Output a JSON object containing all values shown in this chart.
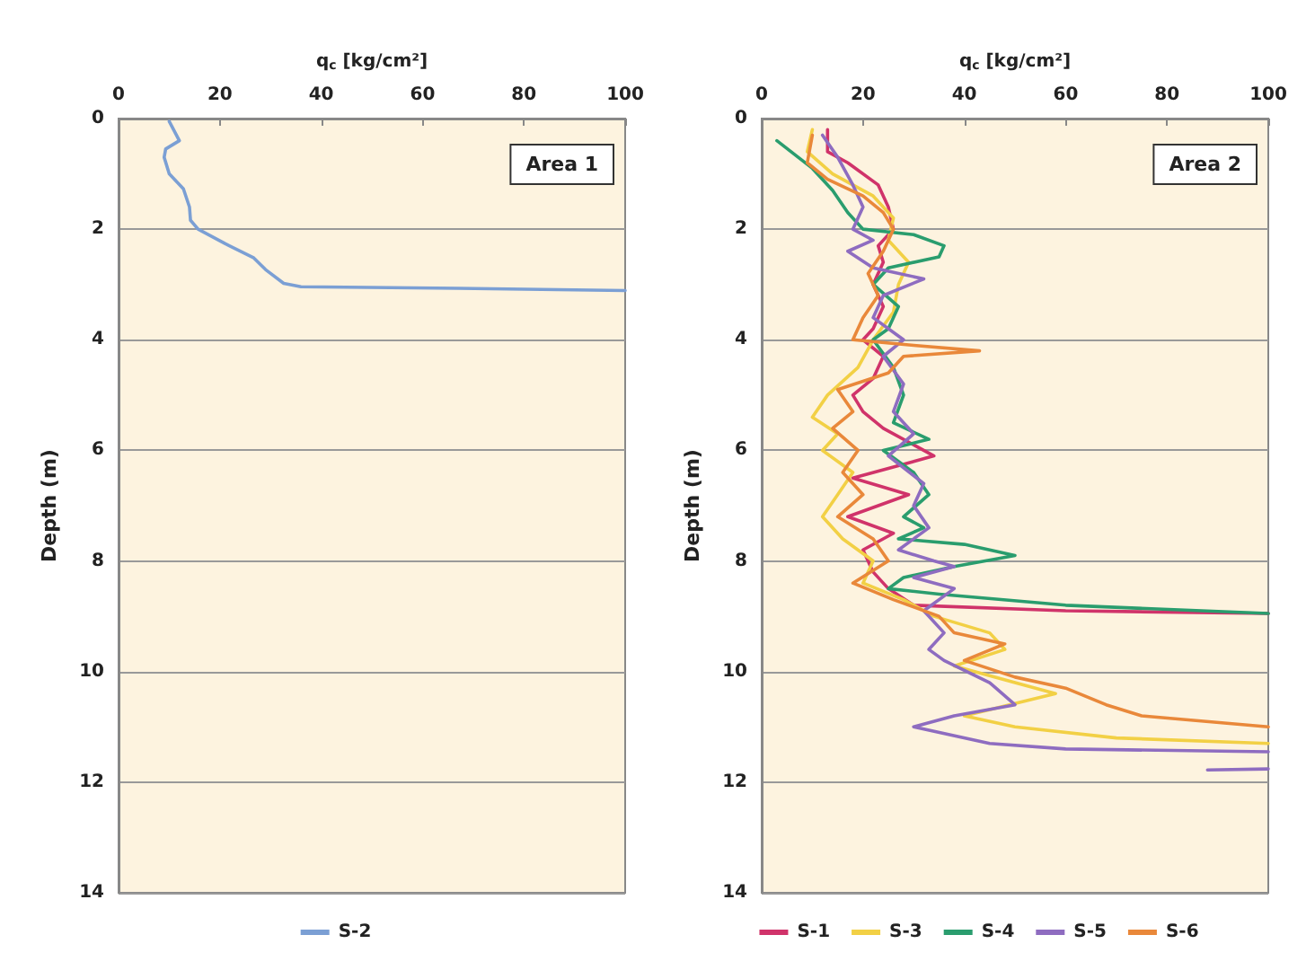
{
  "chart_data": [
    {
      "type": "line",
      "xlabel": "q$_{c}$ [kg/cm²]",
      "ylabel": "Depth (m)",
      "xlim": [
        0,
        100
      ],
      "xticks": [
        0,
        20,
        40,
        60,
        80,
        100
      ],
      "ylim": [
        14,
        0
      ],
      "yticks": [
        0,
        2,
        4,
        6,
        8,
        10,
        12,
        14
      ],
      "grid": "y",
      "legend": "bottom",
      "annotations": [
        "Area 1"
      ],
      "series": [
        {
          "name": "S-2",
          "color": "#7b9fd4",
          "x": [
            10,
            12,
            9.3,
            9,
            10,
            12.8,
            14,
            14.2,
            15.7,
            21,
            26.7,
            29,
            32.6,
            36,
            67,
            100
          ],
          "values": [
            0.05,
            0.4,
            0.55,
            0.7,
            1.0,
            1.27,
            1.6,
            1.84,
            2.0,
            2.26,
            2.52,
            2.73,
            2.98,
            3.04,
            3.07,
            3.11
          ]
        }
      ]
    },
    {
      "type": "line",
      "xlabel": "q$_{c}$ [kg/cm²]",
      "ylabel": "Depth (m)",
      "xlim": [
        0,
        100
      ],
      "xticks": [
        0,
        20,
        40,
        60,
        80,
        100
      ],
      "ylim": [
        14,
        0
      ],
      "yticks": [
        0,
        2,
        4,
        6,
        8,
        10,
        12,
        14
      ],
      "grid": "y",
      "legend": "bottom",
      "annotations": [
        "Area 2"
      ],
      "series": [
        {
          "name": "S-1",
          "color": "#d0336a",
          "x": [
            13,
            13,
            17,
            23,
            25,
            26,
            23,
            24,
            22,
            24,
            22,
            20,
            24,
            22,
            18,
            20,
            24,
            34,
            18,
            29,
            17,
            26,
            20,
            22,
            25,
            30,
            60,
            100
          ],
          "values": [
            0.2,
            0.6,
            0.8,
            1.2,
            1.6,
            2.0,
            2.3,
            2.6,
            3.0,
            3.4,
            3.8,
            4.0,
            4.3,
            4.7,
            5.0,
            5.3,
            5.6,
            6.1,
            6.5,
            6.8,
            7.2,
            7.5,
            7.8,
            8.2,
            8.5,
            8.8,
            8.9,
            8.95
          ]
        },
        {
          "name": "S-3",
          "color": "#f2d045",
          "x": [
            10,
            9,
            14,
            22,
            26,
            25,
            29,
            27,
            26,
            22,
            19,
            13,
            10,
            15,
            12,
            18,
            15,
            12,
            16,
            22,
            20,
            28,
            34,
            45,
            48,
            38,
            50,
            58,
            40,
            50,
            70,
            100
          ],
          "values": [
            0.2,
            0.6,
            1.0,
            1.4,
            1.8,
            2.2,
            2.6,
            3.0,
            3.5,
            4.0,
            4.5,
            5.0,
            5.4,
            5.7,
            6.0,
            6.4,
            6.8,
            7.2,
            7.6,
            8.0,
            8.4,
            8.7,
            9.0,
            9.3,
            9.6,
            9.9,
            10.2,
            10.4,
            10.8,
            11.0,
            11.2,
            11.3
          ]
        },
        {
          "name": "S-4",
          "color": "#2a9d6e",
          "x": [
            3,
            10,
            14,
            17,
            20,
            30,
            36,
            35,
            25,
            22,
            27,
            25,
            22,
            26,
            28,
            26,
            33,
            24,
            30,
            33,
            28,
            32,
            27,
            40,
            50,
            38,
            28,
            25,
            35,
            60,
            100
          ],
          "values": [
            0.4,
            0.9,
            1.3,
            1.7,
            2.0,
            2.1,
            2.3,
            2.5,
            2.7,
            3.0,
            3.4,
            3.8,
            4.0,
            4.5,
            5.0,
            5.5,
            5.8,
            6.0,
            6.4,
            6.8,
            7.2,
            7.4,
            7.6,
            7.7,
            7.9,
            8.1,
            8.3,
            8.5,
            8.6,
            8.8,
            8.95
          ]
        },
        {
          "name": "S-5",
          "color": "#8e6cc0",
          "x": [
            12,
            15,
            18,
            20,
            18,
            22,
            17,
            22,
            32,
            24,
            22,
            28,
            24,
            28,
            26,
            30,
            25,
            32,
            30,
            33,
            27,
            34,
            38,
            30,
            38,
            32,
            36,
            33,
            36,
            45,
            50,
            38,
            30,
            45,
            60,
            100,
            null,
            88,
            100
          ],
          "values": [
            0.3,
            0.7,
            1.2,
            1.6,
            2.0,
            2.2,
            2.4,
            2.7,
            2.9,
            3.2,
            3.6,
            4.0,
            4.3,
            4.8,
            5.3,
            5.7,
            6.1,
            6.6,
            7.0,
            7.4,
            7.8,
            8.0,
            8.1,
            8.3,
            8.5,
            8.9,
            9.3,
            9.6,
            9.8,
            10.2,
            10.6,
            10.8,
            11.0,
            11.3,
            11.4,
            11.45,
            null,
            11.78,
            11.76
          ]
        },
        {
          "name": "S-6",
          "color": "#e9883a",
          "x": [
            10,
            9,
            13,
            20,
            24,
            26,
            24,
            21,
            23,
            20,
            18,
            30,
            43,
            28,
            25,
            15,
            18,
            14,
            19,
            16,
            20,
            15,
            22,
            25,
            18,
            26,
            35,
            38,
            48,
            40,
            50,
            60,
            68,
            75,
            100
          ],
          "values": [
            0.3,
            0.8,
            1.1,
            1.4,
            1.7,
            2.0,
            2.4,
            2.8,
            3.2,
            3.6,
            4.0,
            4.1,
            4.2,
            4.3,
            4.6,
            4.9,
            5.3,
            5.6,
            6.0,
            6.4,
            6.8,
            7.2,
            7.6,
            8.0,
            8.4,
            8.7,
            9.0,
            9.3,
            9.5,
            9.8,
            10.1,
            10.3,
            10.6,
            10.8,
            11.0
          ]
        }
      ]
    }
  ]
}
